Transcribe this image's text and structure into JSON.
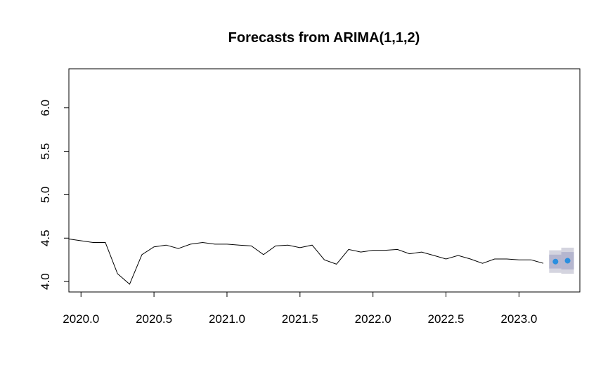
{
  "chart_data": {
    "type": "line",
    "title": "Forecasts from ARIMA(1,1,2)",
    "xlabel": "",
    "ylabel": "",
    "xlim": [
      2019.917,
      2023.417
    ],
    "ylim": [
      3.88,
      6.45
    ],
    "x_ticks": [
      2020.0,
      2020.5,
      2021.0,
      2021.5,
      2022.0,
      2022.5,
      2023.0
    ],
    "x_tick_labels": [
      "2020.0",
      "2020.5",
      "2021.0",
      "2021.5",
      "2022.0",
      "2022.5",
      "2023.0"
    ],
    "y_ticks": [
      4.0,
      4.5,
      5.0,
      5.5,
      6.0
    ],
    "y_tick_labels": [
      "4.0",
      "4.5",
      "5.0",
      "5.5",
      "6.0"
    ],
    "grid": false,
    "legend": "none",
    "series": [
      {
        "x": [
          2019.917,
          2020.0,
          2020.083,
          2020.167,
          2020.25,
          2020.333,
          2020.417,
          2020.5,
          2020.583,
          2020.667,
          2020.75,
          2020.833,
          2020.917,
          2021.0,
          2021.083,
          2021.167,
          2021.25,
          2021.333,
          2021.417,
          2021.5,
          2021.583,
          2021.667,
          2021.75,
          2021.833,
          2021.917,
          2022.0,
          2022.083,
          2022.167,
          2022.25,
          2022.333,
          2022.417,
          2022.5,
          2022.583,
          2022.667,
          2022.75,
          2022.833,
          2022.917,
          2023.0,
          2023.083,
          2023.167
        ],
        "values": [
          4.49,
          4.47,
          4.45,
          4.45,
          4.09,
          3.97,
          4.31,
          4.4,
          4.42,
          4.38,
          4.43,
          4.45,
          4.43,
          4.43,
          4.42,
          4.41,
          4.31,
          4.41,
          4.42,
          4.39,
          4.42,
          4.25,
          4.2,
          4.37,
          4.34,
          4.36,
          4.36,
          4.37,
          4.32,
          4.34,
          4.3,
          4.26,
          4.3,
          4.26,
          4.21,
          4.26,
          4.26,
          4.25,
          4.25,
          4.21
        ],
        "color": "#000000"
      }
    ],
    "forecast": {
      "x": [
        2023.25,
        2023.333
      ],
      "mean": [
        4.23,
        4.24
      ],
      "lower80": [
        4.15,
        4.14
      ],
      "upper80": [
        4.31,
        4.34
      ],
      "lower95": [
        4.1,
        4.09
      ],
      "upper95": [
        4.36,
        4.39
      ],
      "point_color": "#2B8FDF",
      "band80_color": "#B5B6CF",
      "band95_color": "#D4D4DF"
    }
  }
}
